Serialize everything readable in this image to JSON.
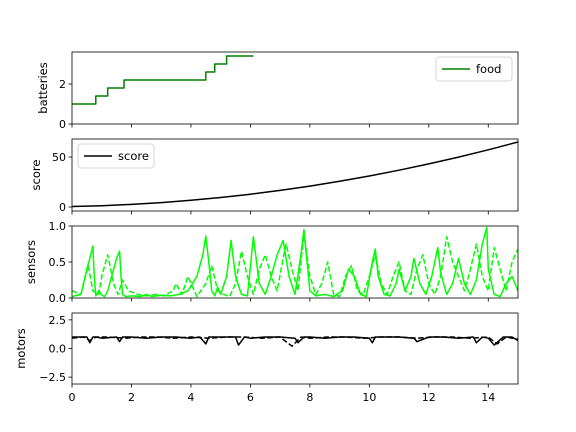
{
  "chart_data": [
    {
      "type": "line",
      "ylabel": "batteries",
      "xlim": [
        0,
        15
      ],
      "ylim": [
        0,
        3.6
      ],
      "yticks": [
        "0",
        "2"
      ],
      "legend": {
        "entries": [
          "food"
        ],
        "placement": "top-right"
      },
      "series": [
        {
          "name": "food",
          "color": "#008000",
          "style": "step",
          "x": [
            0,
            0.8,
            0.8,
            1.2,
            1.2,
            1.75,
            1.75,
            4.5,
            4.5,
            4.8,
            4.8,
            5.2,
            5.2,
            6.1
          ],
          "values": [
            1.0,
            1.0,
            1.4,
            1.4,
            1.8,
            1.8,
            2.2,
            2.2,
            2.6,
            2.6,
            3.0,
            3.0,
            3.4,
            3.4
          ]
        }
      ]
    },
    {
      "type": "line",
      "ylabel": "score",
      "xlim": [
        0,
        15
      ],
      "ylim": [
        -4,
        68
      ],
      "yticks": [
        "0",
        "50"
      ],
      "legend": {
        "entries": [
          "score"
        ],
        "placement": "top-left"
      },
      "series": [
        {
          "name": "score",
          "color": "#000000",
          "style": "solid",
          "x": [
            0,
            1,
            2,
            3,
            4,
            5,
            6,
            7,
            8,
            9,
            10,
            11,
            12,
            13,
            14,
            15
          ],
          "values": [
            0.5,
            1.3,
            2.6,
            4.4,
            6.7,
            9.5,
            12.8,
            16.6,
            20.9,
            25.7,
            31.0,
            36.8,
            43.1,
            49.9,
            57.2,
            65.0
          ]
        }
      ]
    },
    {
      "type": "line",
      "ylabel": "sensors",
      "xlim": [
        0,
        15
      ],
      "ylim": [
        0,
        1
      ],
      "yticks": [
        "0.0",
        "0.5",
        "1.0"
      ],
      "series": [
        {
          "color": "#00ff00",
          "style": "solid",
          "x": [
            0,
            0.3,
            0.5,
            0.6,
            0.7,
            0.75,
            0.8,
            0.9,
            1.0,
            1.1,
            1.2,
            1.4,
            1.5,
            1.6,
            1.65,
            1.7,
            1.8,
            2.0,
            2.3,
            2.5,
            2.7,
            3.0,
            3.3,
            3.6,
            3.9,
            4.2,
            4.4,
            4.5,
            4.6,
            4.7,
            4.8,
            4.9,
            5.0,
            5.2,
            5.35,
            5.5,
            5.7,
            5.9,
            6.1,
            6.3,
            6.5,
            6.7,
            6.9,
            7.1,
            7.3,
            7.5,
            7.7,
            7.8,
            8.0,
            8.2,
            8.5,
            8.8,
            9.1,
            9.3,
            9.5,
            9.7,
            9.9,
            10.1,
            10.2,
            10.3,
            10.5,
            10.7,
            10.9,
            11.0,
            11.2,
            11.4,
            11.5,
            11.7,
            11.9,
            12.1,
            12.3,
            12.4,
            12.6,
            12.8,
            13.0,
            13.2,
            13.4,
            13.6,
            13.8,
            13.95,
            14.0,
            14.2,
            14.4,
            14.6,
            14.8,
            15.0
          ],
          "values": [
            0.02,
            0.05,
            0.4,
            0.55,
            0.72,
            0.3,
            0.03,
            0.1,
            0.04,
            0.02,
            0.1,
            0.4,
            0.55,
            0.65,
            0.3,
            0.05,
            0.02,
            0.03,
            0.02,
            0.05,
            0.02,
            0.04,
            0.03,
            0.05,
            0.1,
            0.3,
            0.6,
            0.86,
            0.5,
            0.1,
            0.03,
            0.15,
            0.05,
            0.3,
            0.8,
            0.3,
            0.05,
            0.03,
            0.85,
            0.2,
            0.05,
            0.3,
            0.6,
            0.8,
            0.3,
            0.05,
            0.6,
            0.95,
            0.1,
            0.03,
            0.05,
            0.02,
            0.1,
            0.4,
            0.3,
            0.05,
            0.02,
            0.5,
            0.68,
            0.3,
            0.05,
            0.03,
            0.2,
            0.4,
            0.1,
            0.3,
            0.55,
            0.2,
            0.05,
            0.3,
            0.7,
            0.35,
            0.05,
            0.2,
            0.55,
            0.2,
            0.05,
            0.25,
            0.75,
            0.98,
            0.4,
            0.05,
            0.02,
            0.2,
            0.3,
            0.1
          ]
        },
        {
          "color": "#00ff00",
          "style": "dashed",
          "x": [
            0,
            0.3,
            0.45,
            0.55,
            0.7,
            0.9,
            1.0,
            1.2,
            1.4,
            1.55,
            1.7,
            1.9,
            2.2,
            2.5,
            2.8,
            3.1,
            3.4,
            3.5,
            3.7,
            3.9,
            4.2,
            4.5,
            4.7,
            4.9,
            5.1,
            5.3,
            5.5,
            5.7,
            5.9,
            6.1,
            6.3,
            6.5,
            6.7,
            6.9,
            7.1,
            7.2,
            7.4,
            7.6,
            7.8,
            8.0,
            8.2,
            8.4,
            8.6,
            8.8,
            9.0,
            9.2,
            9.4,
            9.6,
            9.8,
            10.0,
            10.2,
            10.4,
            10.6,
            10.8,
            11.0,
            11.2,
            11.4,
            11.6,
            11.8,
            12.0,
            12.2,
            12.4,
            12.6,
            12.8,
            13.0,
            13.2,
            13.4,
            13.6,
            13.8,
            14.0,
            14.2,
            14.4,
            14.6,
            14.8,
            15.0
          ],
          "values": [
            0.1,
            0.05,
            0.3,
            0.45,
            0.1,
            0.05,
            0.3,
            0.6,
            0.2,
            0.05,
            0.25,
            0.1,
            0.05,
            0.03,
            0.05,
            0.03,
            0.1,
            0.2,
            0.05,
            0.3,
            0.02,
            0.2,
            0.45,
            0.1,
            0.05,
            0.02,
            0.2,
            0.65,
            0.3,
            0.05,
            0.4,
            0.6,
            0.3,
            0.1,
            0.55,
            0.75,
            0.4,
            0.1,
            0.9,
            0.3,
            0.05,
            0.2,
            0.5,
            0.05,
            0.02,
            0.3,
            0.45,
            0.1,
            0.05,
            0.3,
            0.6,
            0.2,
            0.05,
            0.3,
            0.5,
            0.1,
            0.05,
            0.4,
            0.6,
            0.2,
            0.05,
            0.3,
            0.85,
            0.5,
            0.3,
            0.1,
            0.4,
            0.75,
            0.3,
            0.1,
            0.7,
            0.4,
            0.1,
            0.5,
            0.68
          ]
        }
      ]
    },
    {
      "type": "line",
      "ylabel": "motors",
      "xlim": [
        0,
        15
      ],
      "ylim": [
        -3.1,
        3.1
      ],
      "yticks": [
        "−2.5",
        "0.0",
        "2.5"
      ],
      "xticks": [
        "0",
        "2",
        "4",
        "6",
        "8",
        "10",
        "12",
        "14"
      ],
      "series": [
        {
          "color": "#000000",
          "style": "solid",
          "x": [
            0,
            0.5,
            0.6,
            0.7,
            0.8,
            1.0,
            1.5,
            1.6,
            1.7,
            2.0,
            2.5,
            3.0,
            3.5,
            4.0,
            4.3,
            4.5,
            4.6,
            5.0,
            5.5,
            5.6,
            5.8,
            6.0,
            6.5,
            7.0,
            7.5,
            7.6,
            7.8,
            8.0,
            8.5,
            9.0,
            9.5,
            10.0,
            10.1,
            10.2,
            10.5,
            11.0,
            11.5,
            11.6,
            12.0,
            12.5,
            13.0,
            13.5,
            13.6,
            13.8,
            14.0,
            14.2,
            14.5,
            14.8,
            15.0
          ],
          "values": [
            1.0,
            1.0,
            0.5,
            1.0,
            1.0,
            0.9,
            1.0,
            0.6,
            1.0,
            1.0,
            0.9,
            1.0,
            1.0,
            0.9,
            1.0,
            0.4,
            1.0,
            1.0,
            1.0,
            0.3,
            1.0,
            0.9,
            1.0,
            1.0,
            0.9,
            0.5,
            1.0,
            1.0,
            0.9,
            1.0,
            1.0,
            0.9,
            0.5,
            1.0,
            1.0,
            1.0,
            0.9,
            0.6,
            1.0,
            1.0,
            0.9,
            1.0,
            0.5,
            1.0,
            0.9,
            0.3,
            1.0,
            1.0,
            0.7
          ]
        },
        {
          "color": "#000000",
          "style": "dashed",
          "x": [
            0,
            0.4,
            0.6,
            0.8,
            1.2,
            1.8,
            2.3,
            2.9,
            3.4,
            4.0,
            4.6,
            5.2,
            5.8,
            6.4,
            7.0,
            7.4,
            7.7,
            8.0,
            8.6,
            9.2,
            9.8,
            10.4,
            11.0,
            11.6,
            12.2,
            12.8,
            13.4,
            14.0,
            14.3,
            14.6,
            15.0
          ],
          "values": [
            0.9,
            1.0,
            0.7,
            1.0,
            1.0,
            0.9,
            1.0,
            1.0,
            0.9,
            1.0,
            0.9,
            1.0,
            1.0,
            0.9,
            1.0,
            0.2,
            1.0,
            0.9,
            1.0,
            1.0,
            0.9,
            1.0,
            1.0,
            0.9,
            1.0,
            1.0,
            0.9,
            1.0,
            0.4,
            1.0,
            0.8
          ]
        }
      ]
    }
  ]
}
